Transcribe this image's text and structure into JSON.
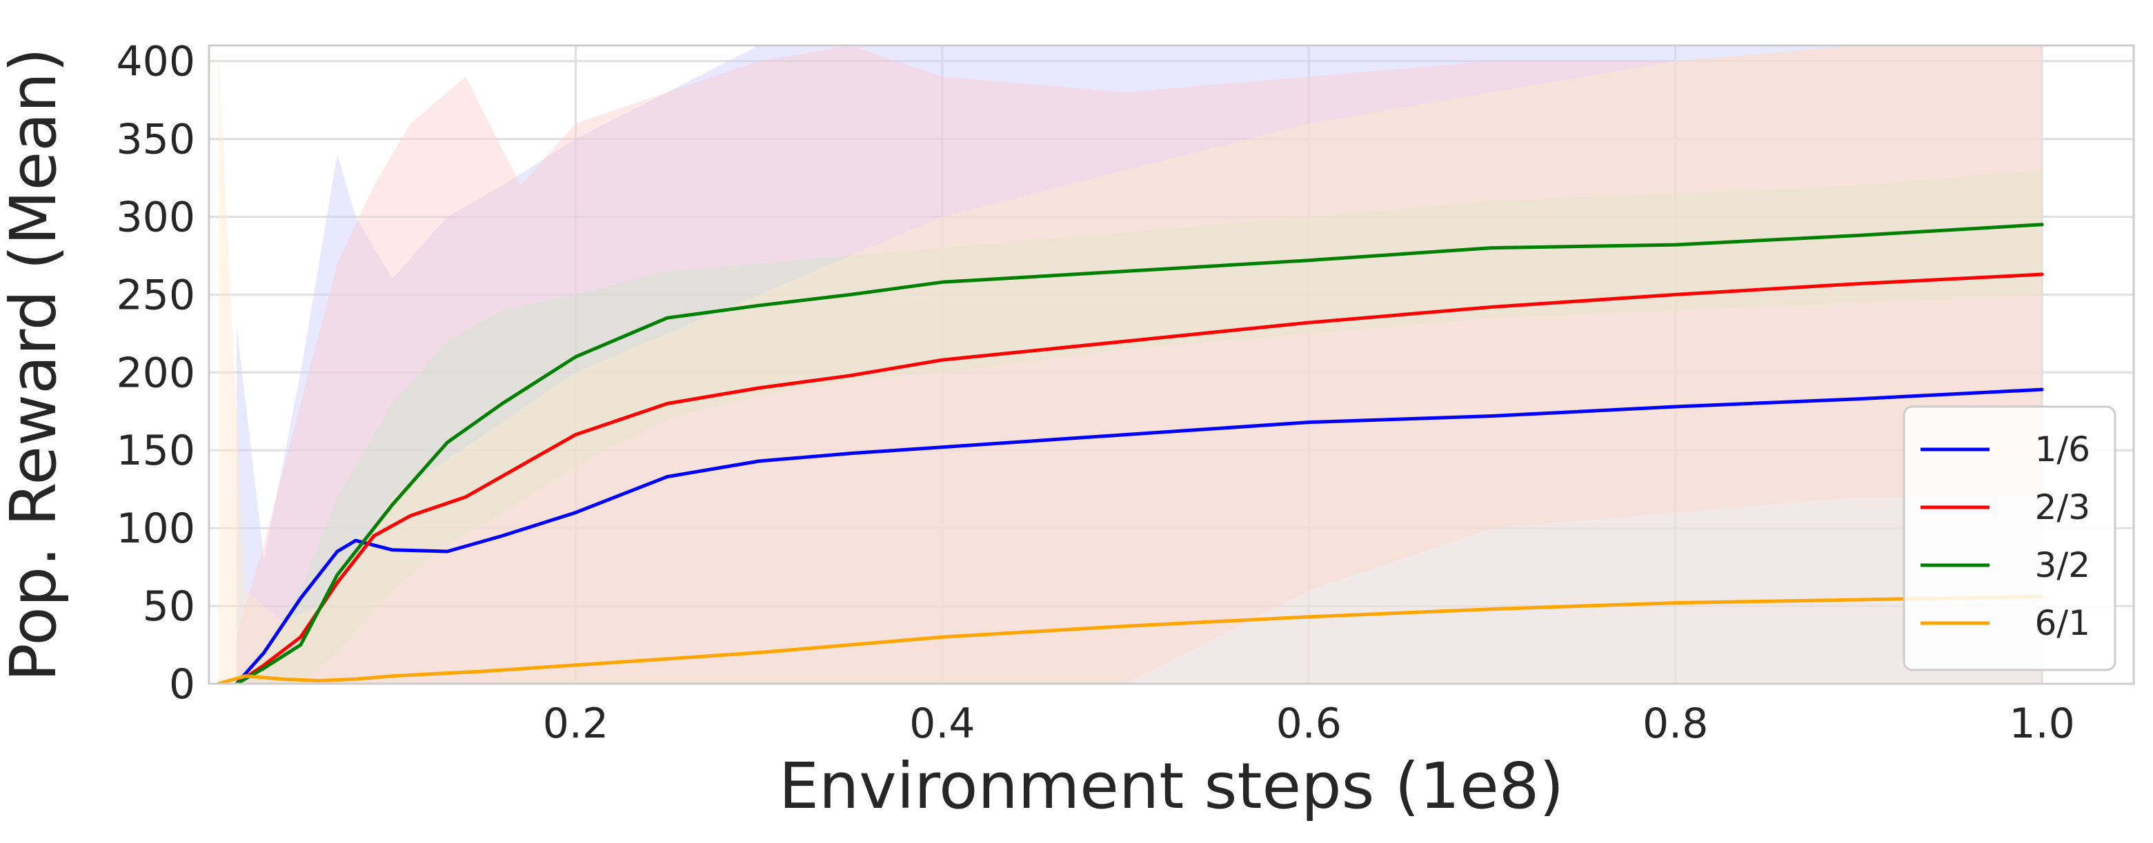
{
  "chart_data": {
    "type": "line",
    "title": "",
    "xlabel": "Environment steps (1e8)",
    "ylabel": "Pop. Reward (Mean)",
    "xlim": [
      0.0,
      1.05
    ],
    "ylim": [
      0,
      410
    ],
    "xticks": [
      0.2,
      0.4,
      0.6,
      0.8,
      1.0
    ],
    "xtick_labels": [
      "0.2",
      "0.4",
      "0.6",
      "0.8",
      "1.0"
    ],
    "yticks": [
      0,
      50,
      100,
      150,
      200,
      250,
      300,
      350,
      400
    ],
    "ytick_labels": [
      "0",
      "50",
      "100",
      "150",
      "200",
      "250",
      "300",
      "350",
      "400"
    ],
    "grid": true,
    "legend_position": "lower-right",
    "shaded_band": "standard deviation band around each mean line",
    "series": [
      {
        "name": "1/6",
        "color": "#0000ff",
        "band_color": "#ccccff",
        "x": [
          0.015,
          0.03,
          0.05,
          0.07,
          0.08,
          0.1,
          0.13,
          0.16,
          0.2,
          0.25,
          0.3,
          0.35,
          0.4,
          0.5,
          0.6,
          0.7,
          0.8,
          0.9,
          1.0
        ],
        "y": [
          0,
          20,
          55,
          85,
          92,
          86,
          85,
          95,
          110,
          133,
          143,
          148,
          152,
          160,
          168,
          172,
          178,
          183,
          189
        ],
        "lower": [
          0,
          0,
          0,
          0,
          0,
          0,
          0,
          0,
          0,
          0,
          0,
          0,
          0,
          0,
          0,
          0,
          0,
          0,
          0
        ],
        "upper": [
          230,
          80,
          200,
          340,
          300,
          260,
          300,
          320,
          350,
          380,
          410,
          410,
          410,
          410,
          410,
          410,
          410,
          410,
          410
        ]
      },
      {
        "name": "2/3",
        "color": "#ff0000",
        "band_color": "#ffcccc",
        "x": [
          0.015,
          0.03,
          0.05,
          0.07,
          0.09,
          0.11,
          0.14,
          0.17,
          0.2,
          0.25,
          0.3,
          0.35,
          0.4,
          0.5,
          0.6,
          0.7,
          0.8,
          0.9,
          1.0
        ],
        "y": [
          0,
          12,
          30,
          65,
          95,
          108,
          120,
          140,
          160,
          180,
          190,
          198,
          208,
          220,
          232,
          242,
          250,
          257,
          263
        ],
        "lower": [
          0,
          0,
          0,
          0,
          0,
          0,
          0,
          0,
          0,
          0,
          0,
          0,
          0,
          0,
          60,
          100,
          110,
          120,
          120
        ],
        "upper": [
          30,
          90,
          180,
          270,
          320,
          360,
          390,
          320,
          360,
          380,
          400,
          410,
          390,
          380,
          390,
          400,
          400,
          410,
          410
        ]
      },
      {
        "name": "3/2",
        "color": "#008000",
        "band_color": "#cce6cc",
        "x": [
          0.015,
          0.03,
          0.05,
          0.07,
          0.1,
          0.13,
          0.16,
          0.2,
          0.25,
          0.3,
          0.35,
          0.4,
          0.5,
          0.6,
          0.7,
          0.8,
          0.9,
          1.0
        ],
        "y": [
          0,
          10,
          25,
          70,
          115,
          155,
          180,
          210,
          235,
          243,
          250,
          258,
          265,
          272,
          280,
          282,
          288,
          295
        ],
        "lower": [
          0,
          0,
          0,
          20,
          60,
          90,
          110,
          140,
          170,
          185,
          195,
          200,
          215,
          225,
          235,
          240,
          245,
          250
        ],
        "upper": [
          5,
          25,
          60,
          120,
          180,
          220,
          240,
          250,
          265,
          270,
          275,
          280,
          290,
          300,
          310,
          315,
          320,
          330
        ]
      },
      {
        "name": "6/1",
        "color": "#ffa500",
        "band_color": "#fde9cc",
        "x": [
          0.005,
          0.02,
          0.04,
          0.06,
          0.08,
          0.1,
          0.15,
          0.2,
          0.3,
          0.4,
          0.5,
          0.6,
          0.7,
          0.8,
          0.9,
          1.0
        ],
        "y": [
          0,
          5,
          3,
          2,
          3,
          5,
          8,
          12,
          20,
          30,
          37,
          43,
          48,
          52,
          54,
          56
        ],
        "lower": [
          0,
          0,
          0,
          0,
          0,
          0,
          0,
          0,
          0,
          0,
          0,
          0,
          0,
          0,
          0,
          0
        ],
        "upper": [
          410,
          60,
          40,
          50,
          80,
          120,
          160,
          200,
          250,
          300,
          330,
          360,
          380,
          400,
          410,
          410
        ]
      }
    ]
  }
}
